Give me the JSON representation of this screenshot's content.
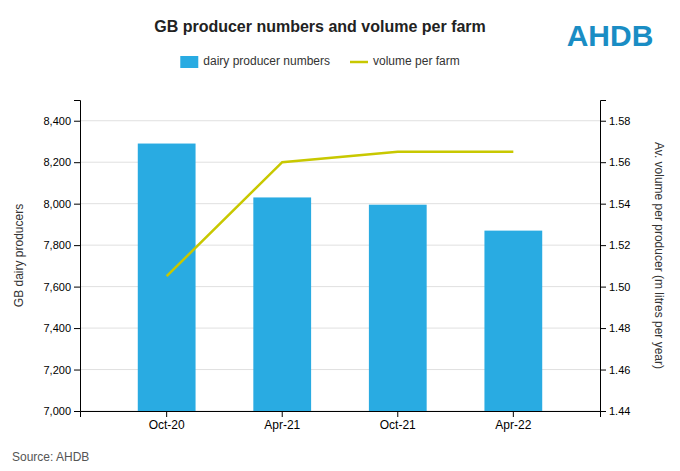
{
  "chart_data": {
    "type": "bar",
    "title": "GB producer numbers and volume per farm",
    "categories": [
      "Oct-20",
      "Apr-21",
      "Oct-21",
      "Apr-22"
    ],
    "series": [
      {
        "name": "dairy producer numbers",
        "type": "bar",
        "color": "#29abe2",
        "values": [
          8290,
          8030,
          7995,
          7870
        ]
      },
      {
        "name": "volume per farm",
        "type": "line",
        "color": "#c8c800",
        "axis": "y2",
        "values": [
          1.505,
          1.56,
          1.565,
          1.565
        ]
      }
    ],
    "ylabel": "GB dairy producers",
    "y2label": "Av. volume per producer (m litres per year)",
    "ylim": [
      7000,
      8500
    ],
    "yticks": [
      {
        "value": 7000,
        "label": "7,000"
      },
      {
        "value": 7200,
        "label": "7,200"
      },
      {
        "value": 7400,
        "label": "7,400"
      },
      {
        "value": 7600,
        "label": "7,600"
      },
      {
        "value": 7800,
        "label": "7,800"
      },
      {
        "value": 8000,
        "label": "8,000"
      },
      {
        "value": 8200,
        "label": "8,200"
      },
      {
        "value": 8400,
        "label": "8,400"
      }
    ],
    "y2lim": [
      1.44,
      1.59
    ],
    "y2ticks": [
      1.44,
      1.46,
      1.48,
      {
        "value": 1.5,
        "label": "1.50"
      },
      1.52,
      1.54,
      1.56,
      1.58
    ],
    "grid": true,
    "legend": "top",
    "annotations": [
      "Source: AHDB",
      "AHDB"
    ]
  }
}
